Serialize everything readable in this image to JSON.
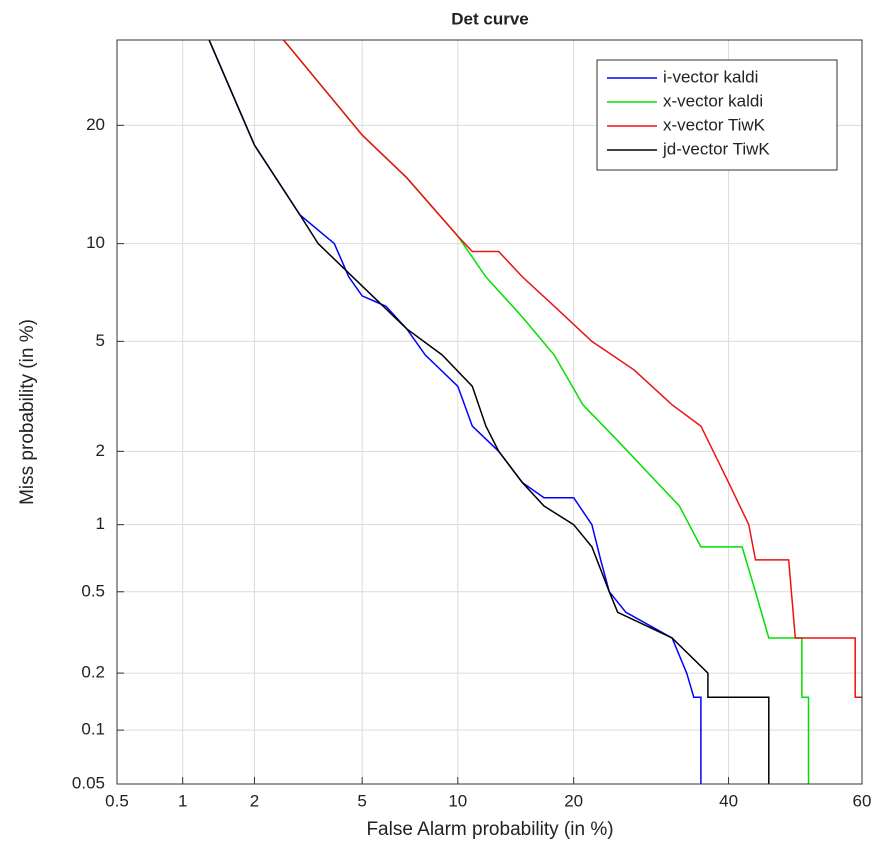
{
  "chart_data": {
    "type": "line",
    "title": "Det curve",
    "xlabel": "False Alarm probability (in %)",
    "ylabel": "Miss probability (in %)",
    "scale": "probit",
    "grid": true,
    "legend": "northeast",
    "xlim": [
      0.5,
      60
    ],
    "xticks": [
      0.5,
      1,
      2,
      5,
      10,
      20,
      40,
      60
    ],
    "ylim": [
      0.05,
      30
    ],
    "yticks": [
      0.05,
      0.1,
      0.2,
      0.5,
      1,
      2,
      5,
      10,
      20
    ],
    "series": [
      {
        "name": "i-vector kaldi",
        "color": "#0000ff",
        "x": [
          1.3,
          2,
          3,
          4,
          4.5,
          5,
          6,
          7,
          8,
          10,
          11,
          13,
          15,
          17,
          20,
          22,
          23,
          24,
          26,
          32,
          34,
          35,
          36,
          36
        ],
        "values": [
          30,
          18,
          12,
          10,
          8,
          7,
          6.5,
          5.5,
          4.5,
          3.5,
          2.5,
          2,
          1.5,
          1.3,
          1.3,
          1,
          0.7,
          0.5,
          0.4,
          0.3,
          0.2,
          0.15,
          0.15,
          0.05
        ]
      },
      {
        "name": "x-vector kaldi",
        "color": "#00e000",
        "x": [
          2.6,
          5,
          7,
          10,
          12,
          15,
          18,
          21,
          25,
          30,
          33,
          36,
          42,
          44,
          46,
          51,
          51,
          52,
          52
        ],
        "values": [
          30,
          19,
          15,
          10.5,
          8,
          6,
          4.5,
          3,
          2.2,
          1.5,
          1.2,
          0.8,
          0.8,
          0.5,
          0.3,
          0.3,
          0.15,
          0.15,
          0.05
        ]
      },
      {
        "name": "x-vector TiwK",
        "color": "#ee1111",
        "x": [
          2.6,
          5,
          7,
          10,
          11,
          13,
          15,
          18,
          22,
          27,
          32,
          36,
          40,
          43,
          44,
          49,
          50,
          59,
          59,
          60
        ],
        "values": [
          30,
          19,
          15,
          10.5,
          9.5,
          9.5,
          8,
          6.5,
          5,
          4,
          3,
          2.5,
          1.5,
          1,
          0.7,
          0.7,
          0.3,
          0.3,
          0.15,
          0.15
        ]
      },
      {
        "name": "jd-vector TiwK",
        "color": "#000000",
        "x": [
          1.3,
          2,
          3,
          3.5,
          5,
          7,
          9,
          11,
          12,
          13,
          15,
          17,
          20,
          22,
          24,
          25,
          32,
          37,
          37,
          46,
          46
        ],
        "values": [
          30,
          18,
          12,
          10,
          7.5,
          5.5,
          4.5,
          3.5,
          2.5,
          2,
          1.5,
          1.2,
          1,
          0.8,
          0.5,
          0.4,
          0.3,
          0.2,
          0.15,
          0.15,
          0.05
        ]
      }
    ]
  }
}
